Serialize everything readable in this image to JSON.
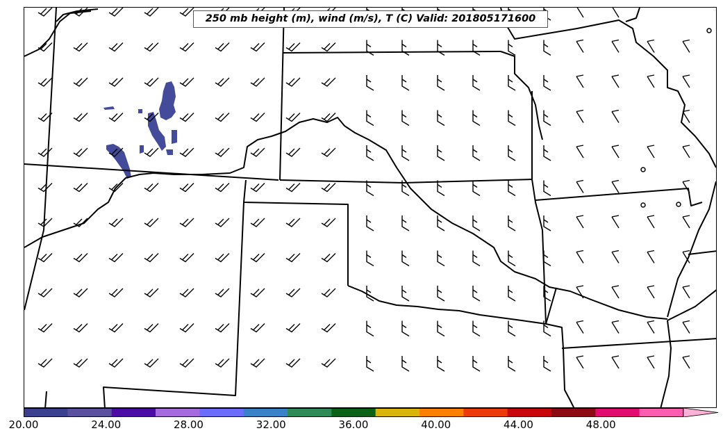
{
  "map": {
    "title": "250 mb height (m), wind (m/s), T (C) Valid: 201805171600",
    "fill_color": "#434b9a",
    "line_color": "#000000"
  },
  "colorbar": {
    "colors": [
      "#3b3f8f",
      "#5b509f",
      "#4b0ca6",
      "#a56bde",
      "#6c6cff",
      "#3a82c8",
      "#2e8b57",
      "#0a6315",
      "#d9b40b",
      "#ff8000",
      "#ec3a0a",
      "#c8070b",
      "#8c0a14",
      "#e20c71",
      "#ff5eb0",
      "#ffb0d6"
    ],
    "tick_labels": [
      "20.00",
      "24.00",
      "28.00",
      "32.00",
      "36.00",
      "40.00",
      "44.00",
      "48.00"
    ],
    "range": [
      20,
      52
    ],
    "extend": "max"
  }
}
